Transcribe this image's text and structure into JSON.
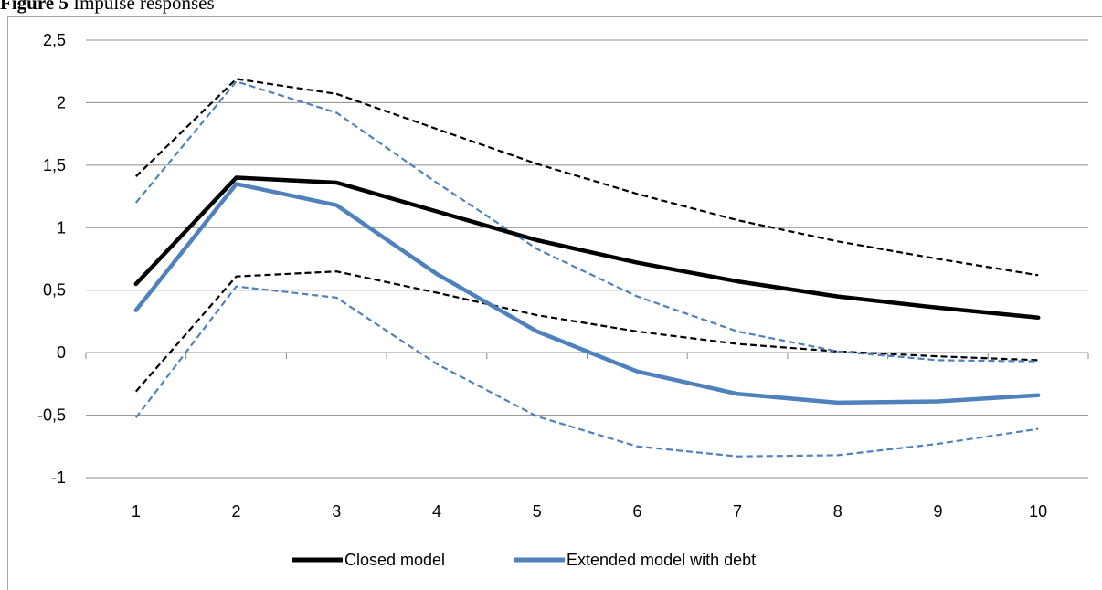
{
  "caption": {
    "figure_label": "Figure 5",
    "title": "Impulse responses"
  },
  "chart_data": {
    "type": "line",
    "categories": [
      "1",
      "2",
      "3",
      "4",
      "5",
      "6",
      "7",
      "8",
      "9",
      "10"
    ],
    "ylim": [
      -1,
      2.5
    ],
    "yticks": [
      "-1",
      "-0,5",
      "0",
      "0,5",
      "1",
      "1,5",
      "2",
      "2,5"
    ],
    "ytick_values": [
      -1,
      -0.5,
      0,
      0.5,
      1,
      1.5,
      2,
      2.5
    ],
    "grid": true,
    "legend_position": "bottom",
    "series": [
      {
        "name": "Closed model",
        "color": "#000000",
        "style": "solid",
        "legend": true,
        "values": [
          0.55,
          1.4,
          1.36,
          1.13,
          0.9,
          0.72,
          0.57,
          0.45,
          0.36,
          0.28
        ]
      },
      {
        "name": "Extended model with debt",
        "color": "#4f81bd",
        "style": "solid",
        "legend": true,
        "values": [
          0.34,
          1.35,
          1.18,
          0.63,
          0.17,
          -0.15,
          -0.33,
          -0.4,
          -0.39,
          -0.34
        ]
      },
      {
        "color": "#000000",
        "style": "dashed",
        "legend": false,
        "values": [
          1.41,
          2.19,
          2.07,
          1.79,
          1.51,
          1.27,
          1.06,
          0.89,
          0.75,
          0.62
        ]
      },
      {
        "color": "#000000",
        "style": "dashed",
        "legend": false,
        "values": [
          -0.31,
          0.61,
          0.65,
          0.48,
          0.3,
          0.17,
          0.07,
          0.01,
          -0.03,
          -0.06
        ]
      },
      {
        "color": "#4f81bd",
        "style": "dashed",
        "legend": false,
        "values": [
          1.2,
          2.17,
          1.92,
          1.36,
          0.83,
          0.45,
          0.17,
          0.01,
          -0.06,
          -0.07
        ]
      },
      {
        "color": "#4f81bd",
        "style": "dashed",
        "legend": false,
        "values": [
          -0.52,
          0.53,
          0.44,
          -0.09,
          -0.51,
          -0.75,
          -0.83,
          -0.82,
          -0.73,
          -0.61
        ]
      }
    ]
  }
}
